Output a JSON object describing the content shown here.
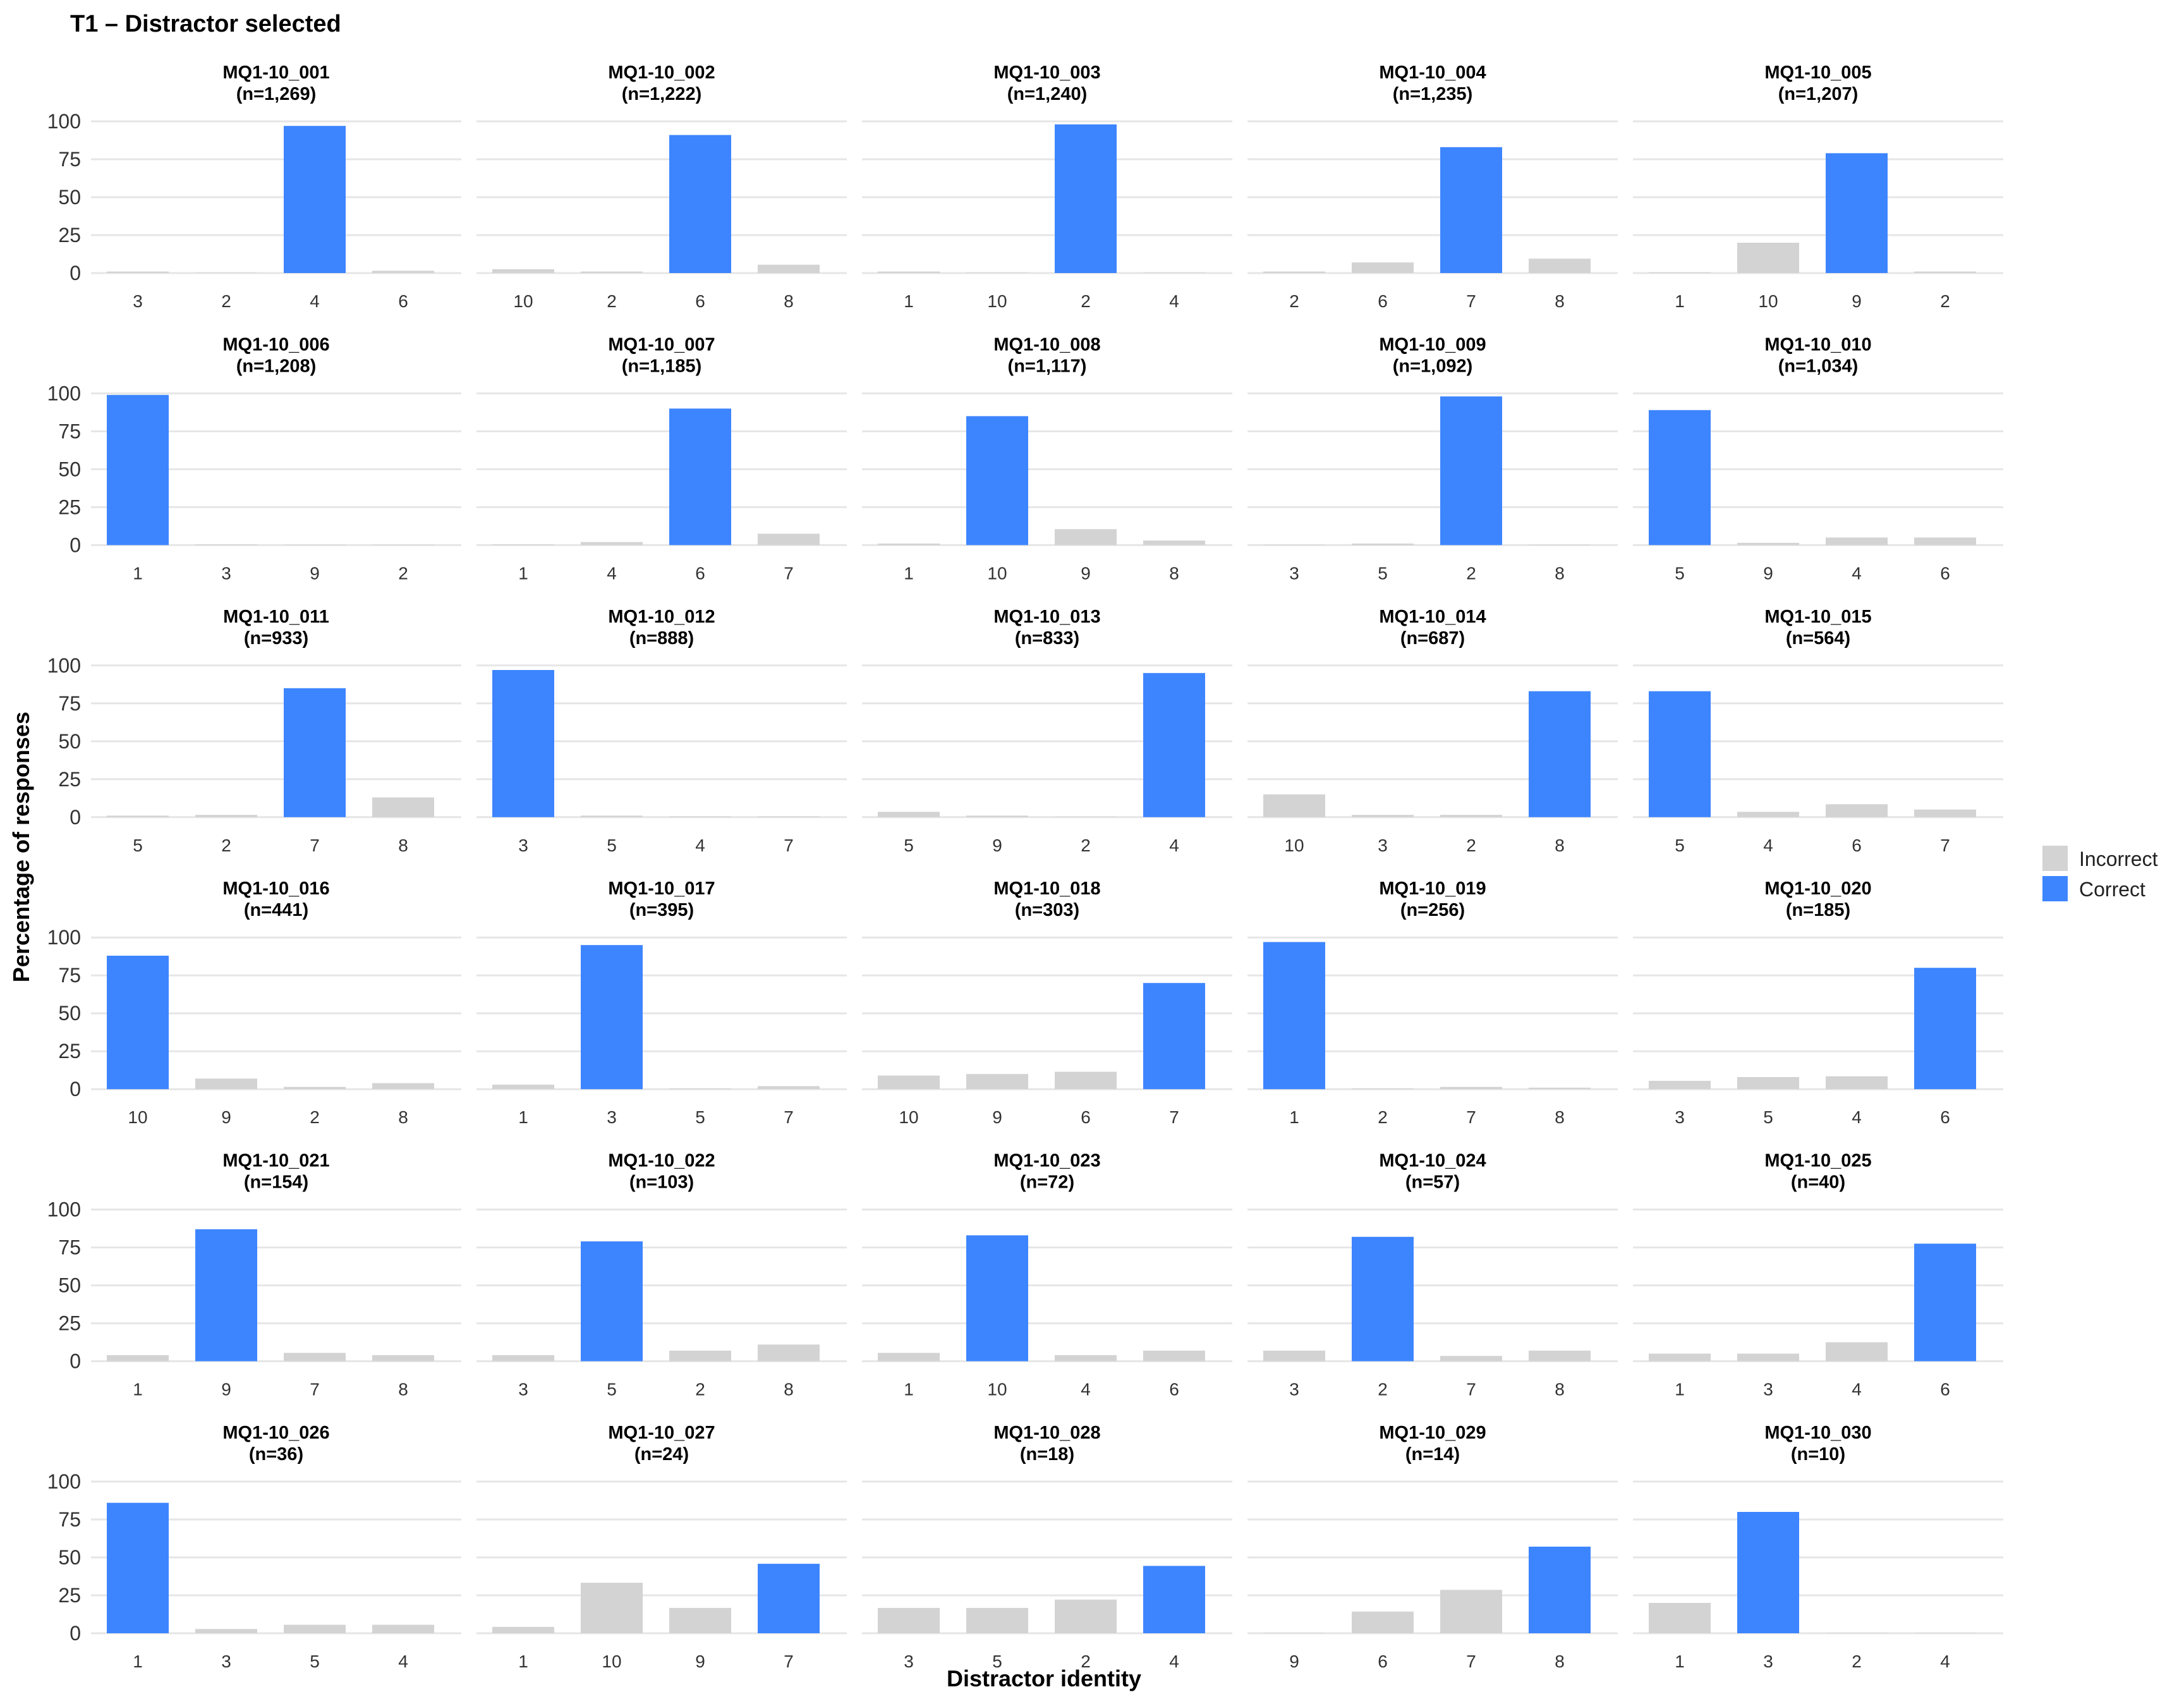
{
  "chart_data": {
    "type": "bar",
    "title": "T1 – Distractor selected",
    "xlabel": "Distractor identity",
    "ylabel": "Percentage of responses",
    "ylim": [
      0,
      100
    ],
    "yticks": [
      0,
      25,
      50,
      75,
      100
    ],
    "grid": true,
    "legend": {
      "position": "right",
      "entries": [
        {
          "label": "Incorrect",
          "color": "#d3d3d3"
        },
        {
          "label": "Correct",
          "color": "#3d85ff"
        }
      ]
    },
    "panels": [
      {
        "name": "MQ1-10_001",
        "n": "(n=1,269)",
        "categories": [
          "3",
          "2",
          "4",
          "6"
        ],
        "values": [
          1,
          0,
          97,
          1.5
        ],
        "correct": [
          false,
          false,
          true,
          false
        ]
      },
      {
        "name": "MQ1-10_002",
        "n": "(n=1,222)",
        "categories": [
          "10",
          "2",
          "6",
          "8"
        ],
        "values": [
          2.5,
          1,
          91,
          5.5
        ],
        "correct": [
          false,
          false,
          true,
          false
        ]
      },
      {
        "name": "MQ1-10_003",
        "n": "(n=1,240)",
        "categories": [
          "1",
          "10",
          "2",
          "4"
        ],
        "values": [
          1,
          0.3,
          98,
          0.3
        ],
        "correct": [
          false,
          false,
          true,
          false
        ]
      },
      {
        "name": "MQ1-10_004",
        "n": "(n=1,235)",
        "categories": [
          "2",
          "6",
          "7",
          "8"
        ],
        "values": [
          1,
          7,
          83,
          9.5
        ],
        "correct": [
          false,
          false,
          true,
          false
        ]
      },
      {
        "name": "MQ1-10_005",
        "n": "(n=1,207)",
        "categories": [
          "1",
          "10",
          "9",
          "2"
        ],
        "values": [
          0.5,
          20,
          79,
          1
        ],
        "correct": [
          false,
          false,
          true,
          false
        ]
      },
      {
        "name": "MQ1-10_006",
        "n": "(n=1,208)",
        "categories": [
          "1",
          "3",
          "9",
          "2"
        ],
        "values": [
          99,
          0.5,
          0.3,
          0.3
        ],
        "correct": [
          true,
          false,
          false,
          false
        ]
      },
      {
        "name": "MQ1-10_007",
        "n": "(n=1,185)",
        "categories": [
          "1",
          "4",
          "6",
          "7"
        ],
        "values": [
          0.5,
          2,
          90,
          7.5
        ],
        "correct": [
          false,
          false,
          true,
          false
        ]
      },
      {
        "name": "MQ1-10_008",
        "n": "(n=1,117)",
        "categories": [
          "1",
          "10",
          "9",
          "8"
        ],
        "values": [
          1,
          85,
          10.5,
          3
        ],
        "correct": [
          false,
          true,
          false,
          false
        ]
      },
      {
        "name": "MQ1-10_009",
        "n": "(n=1,092)",
        "categories": [
          "3",
          "5",
          "2",
          "8"
        ],
        "values": [
          0.3,
          1,
          98,
          0.3
        ],
        "correct": [
          false,
          false,
          true,
          false
        ]
      },
      {
        "name": "MQ1-10_010",
        "n": "(n=1,034)",
        "categories": [
          "5",
          "9",
          "4",
          "6"
        ],
        "values": [
          89,
          1.5,
          5,
          5
        ],
        "correct": [
          true,
          false,
          false,
          false
        ]
      },
      {
        "name": "MQ1-10_011",
        "n": "(n=933)",
        "categories": [
          "5",
          "2",
          "7",
          "8"
        ],
        "values": [
          1,
          1.5,
          85,
          13
        ],
        "correct": [
          false,
          false,
          true,
          false
        ]
      },
      {
        "name": "MQ1-10_012",
        "n": "(n=888)",
        "categories": [
          "3",
          "5",
          "4",
          "7"
        ],
        "values": [
          97,
          1,
          0.5,
          0.5
        ],
        "correct": [
          true,
          false,
          false,
          false
        ]
      },
      {
        "name": "MQ1-10_013",
        "n": "(n=833)",
        "categories": [
          "5",
          "9",
          "2",
          "4"
        ],
        "values": [
          3.5,
          1,
          0.3,
          95
        ],
        "correct": [
          false,
          false,
          false,
          true
        ]
      },
      {
        "name": "MQ1-10_014",
        "n": "(n=687)",
        "categories": [
          "10",
          "3",
          "2",
          "8"
        ],
        "values": [
          15,
          1.5,
          1.5,
          83
        ],
        "correct": [
          false,
          false,
          false,
          true
        ]
      },
      {
        "name": "MQ1-10_015",
        "n": "(n=564)",
        "categories": [
          "5",
          "4",
          "6",
          "7"
        ],
        "values": [
          83,
          3.5,
          8.5,
          5
        ],
        "correct": [
          true,
          false,
          false,
          false
        ]
      },
      {
        "name": "MQ1-10_016",
        "n": "(n=441)",
        "categories": [
          "10",
          "9",
          "2",
          "8"
        ],
        "values": [
          88,
          7,
          1.5,
          4
        ],
        "correct": [
          true,
          false,
          false,
          false
        ]
      },
      {
        "name": "MQ1-10_017",
        "n": "(n=395)",
        "categories": [
          "1",
          "3",
          "5",
          "7"
        ],
        "values": [
          3,
          95,
          0.5,
          2
        ],
        "correct": [
          false,
          true,
          false,
          false
        ]
      },
      {
        "name": "MQ1-10_018",
        "n": "(n=303)",
        "categories": [
          "10",
          "9",
          "6",
          "7"
        ],
        "values": [
          9,
          10,
          11.5,
          70
        ],
        "correct": [
          false,
          false,
          false,
          true
        ]
      },
      {
        "name": "MQ1-10_019",
        "n": "(n=256)",
        "categories": [
          "1",
          "2",
          "7",
          "8"
        ],
        "values": [
          97,
          0.5,
          1.5,
          1
        ],
        "correct": [
          true,
          false,
          false,
          false
        ]
      },
      {
        "name": "MQ1-10_020",
        "n": "(n=185)",
        "categories": [
          "3",
          "5",
          "4",
          "6"
        ],
        "values": [
          5.5,
          8,
          8.5,
          80
        ],
        "correct": [
          false,
          false,
          false,
          true
        ]
      },
      {
        "name": "MQ1-10_021",
        "n": "(n=154)",
        "categories": [
          "1",
          "9",
          "7",
          "8"
        ],
        "values": [
          4,
          87,
          5.5,
          4
        ],
        "correct": [
          false,
          true,
          false,
          false
        ]
      },
      {
        "name": "MQ1-10_022",
        "n": "(n=103)",
        "categories": [
          "3",
          "5",
          "2",
          "8"
        ],
        "values": [
          4,
          79,
          7,
          11
        ],
        "correct": [
          false,
          true,
          false,
          false
        ]
      },
      {
        "name": "MQ1-10_023",
        "n": "(n=72)",
        "categories": [
          "1",
          "10",
          "4",
          "6"
        ],
        "values": [
          5.5,
          83,
          4,
          7
        ],
        "correct": [
          false,
          true,
          false,
          false
        ]
      },
      {
        "name": "MQ1-10_024",
        "n": "(n=57)",
        "categories": [
          "3",
          "2",
          "7",
          "8"
        ],
        "values": [
          7,
          82,
          3.5,
          7
        ],
        "correct": [
          false,
          true,
          false,
          false
        ]
      },
      {
        "name": "MQ1-10_025",
        "n": "(n=40)",
        "categories": [
          "1",
          "3",
          "4",
          "6"
        ],
        "values": [
          5,
          5,
          12.5,
          77.5
        ],
        "correct": [
          false,
          false,
          false,
          true
        ]
      },
      {
        "name": "MQ1-10_026",
        "n": "(n=36)",
        "categories": [
          "1",
          "3",
          "5",
          "4"
        ],
        "values": [
          86,
          2.8,
          5.6,
          5.6
        ],
        "correct": [
          true,
          false,
          false,
          false
        ]
      },
      {
        "name": "MQ1-10_027",
        "n": "(n=24)",
        "categories": [
          "1",
          "10",
          "9",
          "7"
        ],
        "values": [
          4.2,
          33.3,
          16.7,
          45.8
        ],
        "correct": [
          false,
          false,
          false,
          true
        ]
      },
      {
        "name": "MQ1-10_028",
        "n": "(n=18)",
        "categories": [
          "3",
          "5",
          "2",
          "4"
        ],
        "values": [
          16.7,
          16.7,
          22.2,
          44.4
        ],
        "correct": [
          false,
          false,
          false,
          true
        ]
      },
      {
        "name": "MQ1-10_029",
        "n": "(n=14)",
        "categories": [
          "9",
          "6",
          "7",
          "8"
        ],
        "values": [
          0,
          14.3,
          28.6,
          57.1
        ],
        "correct": [
          false,
          false,
          false,
          true
        ]
      },
      {
        "name": "MQ1-10_030",
        "n": "(n=10)",
        "categories": [
          "1",
          "3",
          "2",
          "4"
        ],
        "values": [
          20,
          80,
          0,
          0
        ],
        "correct": [
          false,
          true,
          false,
          false
        ]
      }
    ]
  }
}
